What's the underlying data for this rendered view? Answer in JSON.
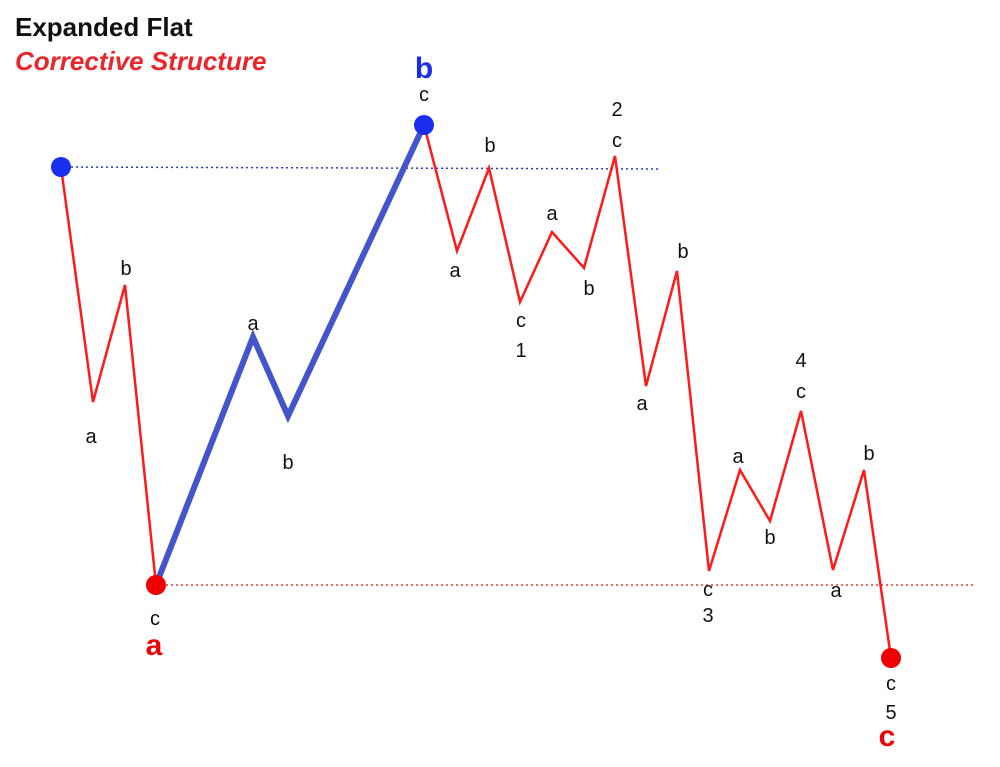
{
  "title": "Expanded Flat",
  "subtitle": "Corrective Structure",
  "colors": {
    "subtitle": "#e8262c",
    "red_wave": "#ff1a1a",
    "blue_wave": "#4455cc",
    "blue_dot": "#1a2ef0",
    "red_dot": "#ee0000",
    "blue_label": "#1a2ef0",
    "red_label": "#ee0000",
    "blue_reference_line": "#2c3cc8",
    "red_reference_line": "#ee3333"
  },
  "wave_labels": {
    "main_a": "a",
    "main_b": "b",
    "main_c": "c",
    "c_top": "c",
    "c_a1": "a",
    "c_b1": "b",
    "c_c1": "c",
    "num_1": "1",
    "c_a2": "a",
    "c_b2": "b",
    "c_c2": "c",
    "num_2": "2",
    "c_a3": "a",
    "c_b3": "b",
    "c_c3": "c",
    "num_3": "3",
    "c_a4": "a",
    "c_b4": "b",
    "c_c4": "c",
    "num_4": "4",
    "c_a5": "a",
    "c_b5": "b",
    "c_c5": "c",
    "num_5": "5",
    "a_a": "a",
    "a_b": "b",
    "a_c": "c",
    "b_a": "a",
    "b_b": "b"
  }
}
